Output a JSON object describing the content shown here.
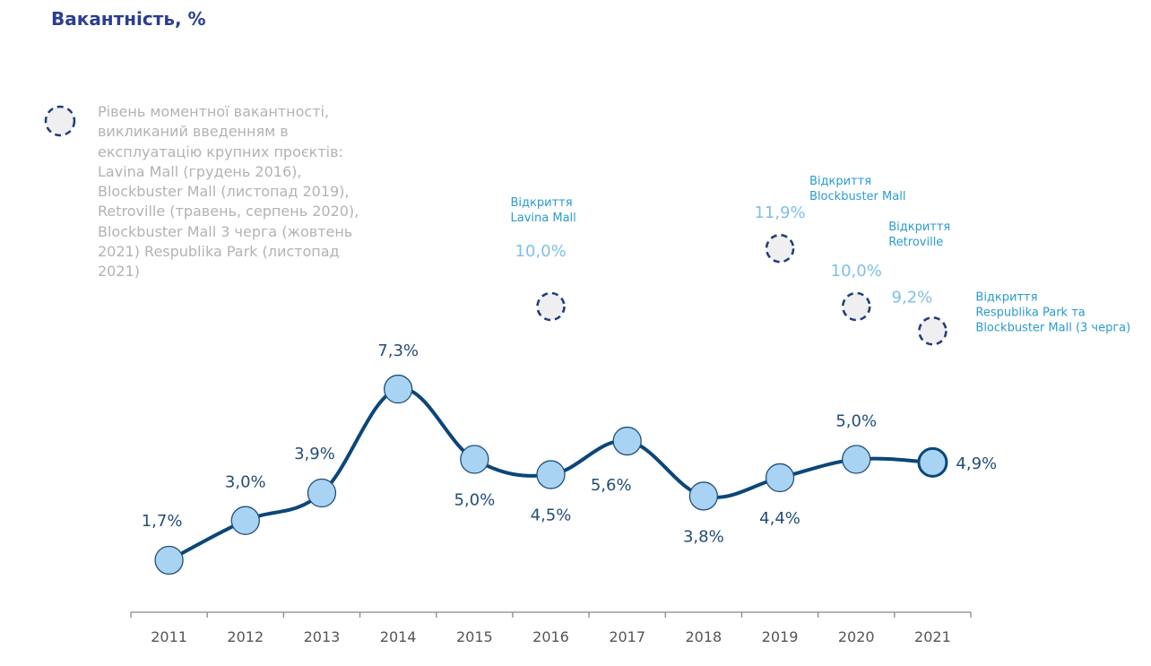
{
  "title": "Вакантність, %",
  "legend": {
    "icon": "dashed-circle-icon",
    "text": "Рівень моментної вакантності,\nвикликаний введенням в\nексплуатацію крупних проєктів:\nLavina Mall (грудень 2016),\nBlockbuster Mall (листопад 2019),\nRetroville (травень, серпень 2020),\nBlockbuster Mall 3 черга (жовтень\n2021) Respublika Park (листопад\n2021)"
  },
  "colors": {
    "title": "#2a3f8f",
    "line": "#0b4679",
    "marker_fill": "#a9d3f2",
    "marker_stroke": "#1f4f7a",
    "spike_fill": "#efeff1",
    "spike_stroke": "#203d78",
    "value_label": "#254d78",
    "spike_label": "#7fc0e6",
    "annotation": "#2a9bd0",
    "axis": "#888888",
    "legend_text": "#b3b3b3"
  },
  "chart_data": {
    "type": "line",
    "title": "Вакантність, %",
    "xlabel": "",
    "ylabel": "",
    "ylim": [
      0,
      12.5
    ],
    "grid": false,
    "categories": [
      "2011",
      "2012",
      "2013",
      "2014",
      "2015",
      "2016",
      "2017",
      "2018",
      "2019",
      "2020",
      "2021"
    ],
    "series": [
      {
        "name": "Вакантність",
        "values": [
          1.7,
          3.0,
          3.9,
          7.3,
          5.0,
          4.5,
          5.6,
          3.8,
          4.4,
          5.0,
          4.9
        ],
        "labels": [
          "1,7%",
          "3,0%",
          "3,9%",
          "7,3%",
          "5,0%",
          "4,5%",
          "5,6%",
          "3,8%",
          "4,4%",
          "5,0%",
          "4,9%"
        ],
        "label_positions": [
          "above-left",
          "above",
          "above-left",
          "above",
          "below",
          "below",
          "below-left",
          "below",
          "below",
          "above",
          "right"
        ]
      },
      {
        "name": "Рівень моментної вакантності",
        "style": "dashed-circle",
        "points": [
          {
            "category": "2016",
            "value": 10.0,
            "label": "10,0%",
            "annotation": [
              "Відкриття",
              "Lavina Mall"
            ]
          },
          {
            "category": "2019",
            "value": 11.9,
            "label": "11,9%",
            "annotation": [
              "Відкриття",
              "Blockbuster Mall"
            ]
          },
          {
            "category": "2020",
            "value": 10.0,
            "label": "10,0%",
            "annotation": [
              "Відкриття",
              "Retroville"
            ]
          },
          {
            "category": "2021",
            "value": 9.2,
            "label": "9,2%",
            "annotation": [
              "Відкриття",
              "Respublika Park та",
              "Blockbuster Mall (3 черга)"
            ]
          }
        ]
      }
    ],
    "legend": "top-left"
  }
}
